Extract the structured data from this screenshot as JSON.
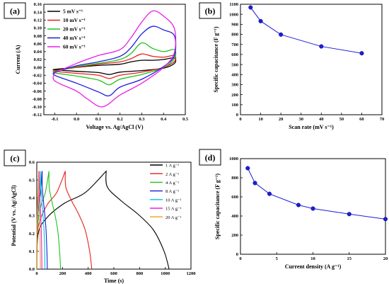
{
  "chart_data": [
    {
      "panel": "(a)",
      "type": "line",
      "xlabel": "Voltage vs. Ag/AgCl (V)",
      "ylabel": "Current (A)",
      "xlim": [
        -0.15,
        0.5
      ],
      "ylim": [
        -0.12,
        0.16
      ],
      "xticks": [
        "-0.1",
        "0.0",
        "0.1",
        "0.2",
        "0.3",
        "0.4",
        "0.5"
      ],
      "yticks": [
        "-0.12",
        "-0.10",
        "-0.08",
        "-0.06",
        "-0.04",
        "-0.02",
        "0.00",
        "0.02",
        "0.04",
        "0.06",
        "0.08",
        "0.10",
        "0.12",
        "0.14",
        "0.16"
      ],
      "legend_position": "top-left",
      "series": [
        {
          "name": "5 mV s⁻¹",
          "color": "#000000",
          "upper": [
            [
              -0.1,
              -0.005
            ],
            [
              0.0,
              0.0
            ],
            [
              0.1,
              0.005
            ],
            [
              0.2,
              0.008
            ],
            [
              0.25,
              0.014
            ],
            [
              0.3,
              0.018
            ],
            [
              0.35,
              0.018
            ],
            [
              0.4,
              0.02
            ],
            [
              0.45,
              0.024
            ]
          ],
          "lower": [
            [
              0.45,
              0.01
            ],
            [
              0.4,
              -0.002
            ],
            [
              0.3,
              -0.008
            ],
            [
              0.2,
              -0.012
            ],
            [
              0.15,
              -0.018
            ],
            [
              0.1,
              -0.013
            ],
            [
              0.0,
              -0.01
            ],
            [
              -0.1,
              -0.006
            ]
          ]
        },
        {
          "name": "10 mV s⁻¹",
          "color": "#e8201c",
          "upper": [
            [
              -0.1,
              -0.008
            ],
            [
              0.0,
              0.0
            ],
            [
              0.1,
              0.008
            ],
            [
              0.2,
              0.014
            ],
            [
              0.25,
              0.022
            ],
            [
              0.3,
              0.034
            ],
            [
              0.35,
              0.028
            ],
            [
              0.4,
              0.026
            ],
            [
              0.45,
              0.03
            ]
          ],
          "lower": [
            [
              0.45,
              0.015
            ],
            [
              0.4,
              0.0
            ],
            [
              0.3,
              -0.012
            ],
            [
              0.2,
              -0.02
            ],
            [
              0.15,
              -0.028
            ],
            [
              0.1,
              -0.02
            ],
            [
              0.0,
              -0.015
            ],
            [
              -0.1,
              -0.01
            ]
          ]
        },
        {
          "name": "20 mV s⁻¹",
          "color": "#1ec41e",
          "upper": [
            [
              -0.1,
              -0.01
            ],
            [
              0.0,
              0.002
            ],
            [
              0.1,
              0.01
            ],
            [
              0.2,
              0.02
            ],
            [
              0.25,
              0.035
            ],
            [
              0.3,
              0.062
            ],
            [
              0.35,
              0.048
            ],
            [
              0.4,
              0.04
            ],
            [
              0.45,
              0.045
            ]
          ],
          "lower": [
            [
              0.45,
              0.022
            ],
            [
              0.4,
              0.0
            ],
            [
              0.3,
              -0.018
            ],
            [
              0.2,
              -0.03
            ],
            [
              0.15,
              -0.044
            ],
            [
              0.1,
              -0.032
            ],
            [
              0.0,
              -0.022
            ],
            [
              -0.1,
              -0.014
            ]
          ]
        },
        {
          "name": "40 mV s⁻¹",
          "color": "#1c1cd8",
          "upper": [
            [
              -0.1,
              -0.012
            ],
            [
              0.0,
              0.004
            ],
            [
              0.1,
              0.014
            ],
            [
              0.2,
              0.028
            ],
            [
              0.25,
              0.05
            ],
            [
              0.3,
              0.085
            ],
            [
              0.35,
              0.104
            ],
            [
              0.4,
              0.095
            ],
            [
              0.45,
              0.08
            ]
          ],
          "lower": [
            [
              0.45,
              0.03
            ],
            [
              0.4,
              0.002
            ],
            [
              0.3,
              -0.03
            ],
            [
              0.2,
              -0.05
            ],
            [
              0.15,
              -0.072
            ],
            [
              0.1,
              -0.062
            ],
            [
              0.0,
              -0.04
            ],
            [
              -0.1,
              -0.02
            ]
          ]
        },
        {
          "name": "60 mV s⁻¹",
          "color": "#e820e8",
          "upper": [
            [
              -0.1,
              -0.014
            ],
            [
              0.0,
              0.01
            ],
            [
              0.1,
              0.03
            ],
            [
              0.2,
              0.045
            ],
            [
              0.25,
              0.075
            ],
            [
              0.3,
              0.115
            ],
            [
              0.35,
              0.143
            ],
            [
              0.4,
              0.13
            ],
            [
              0.45,
              0.098
            ]
          ],
          "lower": [
            [
              0.45,
              0.038
            ],
            [
              0.4,
              0.0
            ],
            [
              0.3,
              -0.04
            ],
            [
              0.2,
              -0.07
            ],
            [
              0.12,
              -0.1
            ],
            [
              0.05,
              -0.08
            ],
            [
              0.0,
              -0.06
            ],
            [
              -0.1,
              -0.034
            ]
          ]
        }
      ]
    },
    {
      "panel": "(b)",
      "type": "line",
      "xlabel": "Scan rate (mV s⁻¹)",
      "ylabel": "Specific capacitance (F g⁻¹)",
      "xlim": [
        0,
        70
      ],
      "ylim": [
        0,
        1100
      ],
      "xticks": [
        "0",
        "10",
        "20",
        "30",
        "40",
        "50",
        "60",
        "70"
      ],
      "yticks": [
        "0",
        "100",
        "200",
        "300",
        "400",
        "500",
        "600",
        "700",
        "800",
        "900",
        "1000",
        "1100"
      ],
      "color": "#1c1cd8",
      "x": [
        5,
        10,
        20,
        40,
        60
      ],
      "values": [
        1068,
        932,
        798,
        680,
        612
      ]
    },
    {
      "panel": "(c)",
      "type": "line",
      "xlabel": "Time (s)",
      "ylabel": "Potential (V vs. Ag/AgCl)",
      "xlim": [
        0,
        1200
      ],
      "ylim": [
        0,
        0.6
      ],
      "xticks": [
        "0",
        "200",
        "400",
        "600",
        "800",
        "1000",
        "1200"
      ],
      "yticks": [
        "0.0",
        "0.1",
        "0.2",
        "0.3",
        "0.4",
        "0.5",
        "0.6"
      ],
      "legend_position": "top-right",
      "series": [
        {
          "name": "1 A g⁻¹",
          "color": "#000000",
          "charge_end": 540,
          "discharge_end": 1030
        },
        {
          "name": "2 A g⁻¹",
          "color": "#e8201c",
          "charge_end": 222,
          "discharge_end": 428
        },
        {
          "name": "4 A g⁻¹",
          "color": "#1ec41e",
          "charge_end": 95,
          "discharge_end": 185
        },
        {
          "name": "8 A g⁻¹",
          "color": "#1c1cd8",
          "charge_end": 42,
          "discharge_end": 82
        },
        {
          "name": "10 A g⁻¹",
          "color": "#00c8d8",
          "charge_end": 32,
          "discharge_end": 64
        },
        {
          "name": "15 A g⁻¹",
          "color": "#e820e8",
          "charge_end": 20,
          "discharge_end": 40
        },
        {
          "name": "20 A g⁻¹",
          "color": "#e8a020",
          "charge_end": 14,
          "discharge_end": 28
        }
      ]
    },
    {
      "panel": "(d)",
      "type": "line",
      "xlabel": "Current density (A g⁻¹)",
      "ylabel": "Specific capacitance (F g⁻¹)",
      "xlim": [
        0,
        20
      ],
      "ylim": [
        0,
        1000
      ],
      "xticks": [
        "0",
        "5",
        "10",
        "15",
        "20"
      ],
      "yticks": [
        "0",
        "200",
        "400",
        "600",
        "800",
        "1000"
      ],
      "color": "#1c1cd8",
      "x": [
        1,
        2,
        4,
        8,
        10,
        15,
        20
      ],
      "values": [
        900,
        745,
        632,
        515,
        478,
        420,
        368
      ]
    }
  ]
}
